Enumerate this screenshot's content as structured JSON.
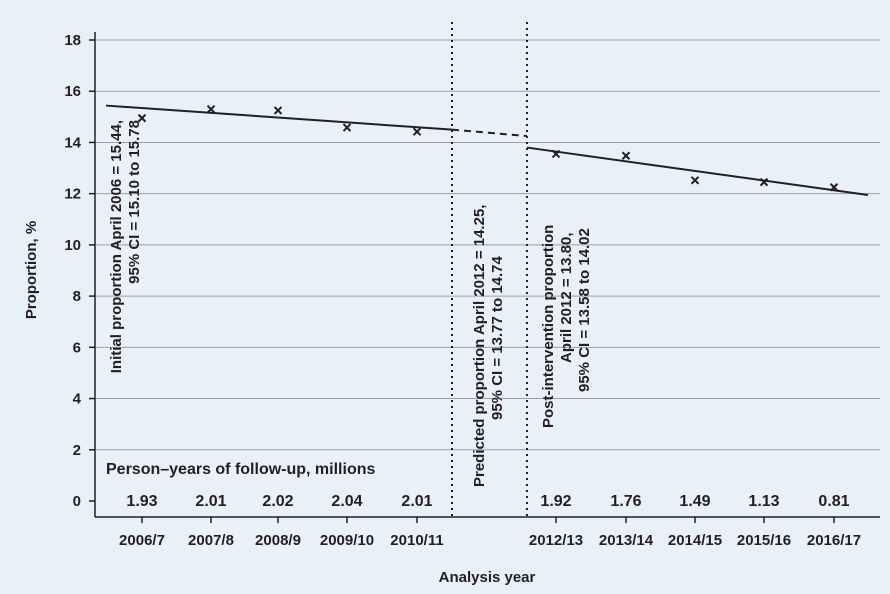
{
  "chart_data": {
    "type": "scatter",
    "xlabel": "Analysis year",
    "ylabel": "Proportion, %",
    "ylim": [
      0,
      18
    ],
    "y_ticks": [
      0,
      2,
      4,
      6,
      8,
      10,
      12,
      14,
      16,
      18
    ],
    "categories": [
      "2006/7",
      "2007/8",
      "2008/9",
      "2009/10",
      "2010/11",
      "2012/13",
      "2013/14",
      "2014/15",
      "2015/16",
      "2016/17"
    ],
    "grid": true,
    "series": [
      {
        "marker": "x",
        "points": [
          {
            "x": "2006/7",
            "y": 14.95
          },
          {
            "x": "2007/8",
            "y": 15.3
          },
          {
            "x": "2008/9",
            "y": 15.25
          },
          {
            "x": "2009/10",
            "y": 14.58
          },
          {
            "x": "2010/11",
            "y": 14.42
          },
          {
            "x": "2012/13",
            "y": 13.55
          },
          {
            "x": "2013/14",
            "y": 13.48
          },
          {
            "x": "2014/15",
            "y": 12.52
          },
          {
            "x": "2015/16",
            "y": 12.45
          },
          {
            "x": "2016/17",
            "y": 12.25
          }
        ]
      }
    ],
    "trend_pre": {
      "start": 15.44,
      "end": 14.5
    },
    "trend_predicted": {
      "start": 14.5,
      "end": 14.25
    },
    "trend_post": {
      "start": 13.8,
      "end": 11.95
    },
    "intervention_lines": [
      "2010/11–2012/13 gap start",
      "2012/13 intervention"
    ],
    "annotations": {
      "initial": [
        "Initial proportion April 2006 = 15.44,",
        "95% CI = 15.10 to 15.78"
      ],
      "predicted": [
        "Predicted proportion April 2012 = 14.25,",
        "95% CI = 13.77 to 14.74"
      ],
      "post": [
        "Post-intervention proportion",
        "April 2012 = 13.80,",
        "95% CI = 13.58 to 14.02"
      ]
    },
    "person_years": {
      "title": "Person–years of follow-up, millions",
      "values": [
        "1.93",
        "2.01",
        "2.02",
        "2.04",
        "2.01",
        "1.92",
        "1.76",
        "1.49",
        "1.13",
        "0.81"
      ]
    },
    "colors": {
      "background": "#e8f1f8",
      "ink": "#231f20",
      "grid": "#9d9fa2"
    }
  }
}
